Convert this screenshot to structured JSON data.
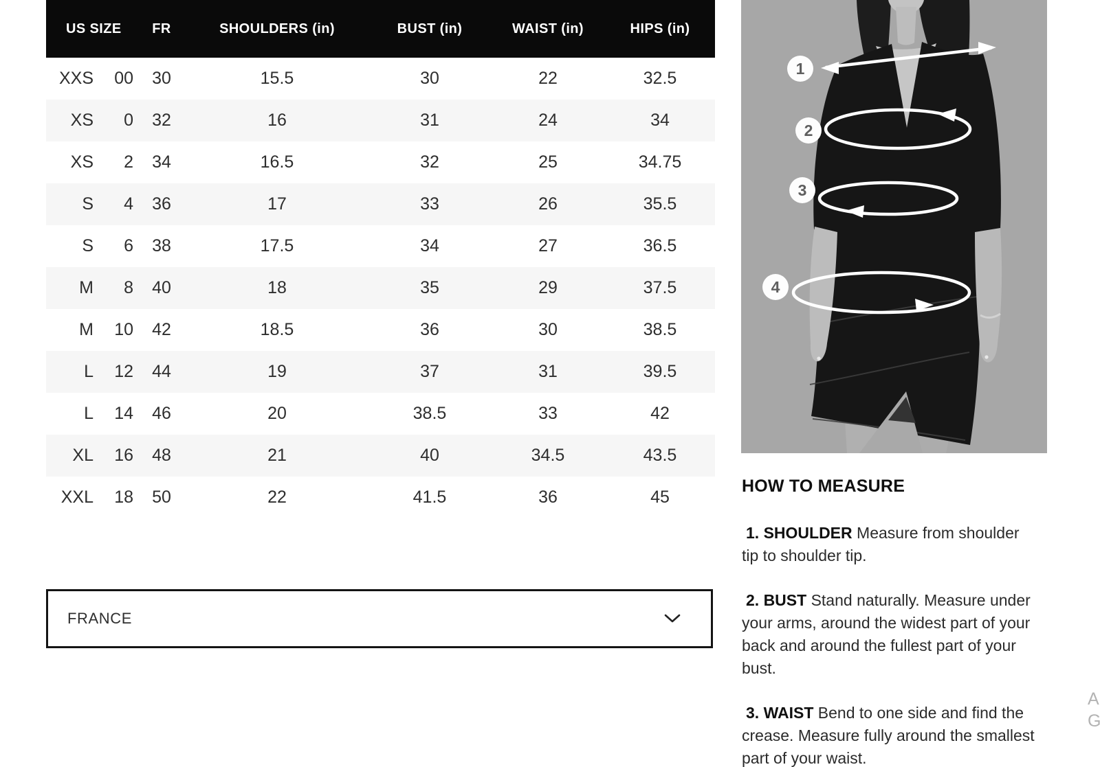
{
  "table": {
    "headers": [
      {
        "label": "US SIZE",
        "colspan": 2
      },
      {
        "label": "FR",
        "colspan": 1
      },
      {
        "label": "SHOULDERS (in)",
        "colspan": 1
      },
      {
        "label": "BUST (in)",
        "colspan": 1
      },
      {
        "label": "WAIST (in)",
        "colspan": 1
      },
      {
        "label": "HIPS (in)",
        "colspan": 1
      }
    ],
    "rows": [
      [
        "XXS",
        "00",
        "30",
        "15.5",
        "30",
        "22",
        "32.5"
      ],
      [
        "XS",
        "0",
        "32",
        "16",
        "31",
        "24",
        "34"
      ],
      [
        "XS",
        "2",
        "34",
        "16.5",
        "32",
        "25",
        "34.75"
      ],
      [
        "S",
        "4",
        "36",
        "17",
        "33",
        "26",
        "35.5"
      ],
      [
        "S",
        "6",
        "38",
        "17.5",
        "34",
        "27",
        "36.5"
      ],
      [
        "M",
        "8",
        "40",
        "18",
        "35",
        "29",
        "37.5"
      ],
      [
        "M",
        "10",
        "42",
        "18.5",
        "36",
        "30",
        "38.5"
      ],
      [
        "L",
        "12",
        "44",
        "19",
        "37",
        "31",
        "39.5"
      ],
      [
        "L",
        "14",
        "46",
        "20",
        "38.5",
        "33",
        "42"
      ],
      [
        "XL",
        "16",
        "48",
        "21",
        "40",
        "34.5",
        "43.5"
      ],
      [
        "XXL",
        "18",
        "50",
        "22",
        "41.5",
        "36",
        "45"
      ]
    ]
  },
  "region_selector": {
    "value": "FRANCE",
    "icon": "chevron-down"
  },
  "measure_guide": {
    "title": "HOW TO MEASURE",
    "steps": [
      {
        "label": "1. SHOULDER",
        "text": "Measure from shoulder tip to shoulder tip."
      },
      {
        "label": "2. BUST",
        "text": "Stand naturally. Measure under your arms, around the widest part of your back and around the fullest part of your bust."
      },
      {
        "label": "3. WAIST",
        "text": "Bend to one side and find the crease. Measure fully around the smallest part of your waist."
      }
    ]
  },
  "figure": {
    "annotations": [
      {
        "label": "1",
        "measures": "shoulders"
      },
      {
        "label": "2",
        "measures": "bust"
      },
      {
        "label": "3",
        "measures": "waist"
      },
      {
        "label": "4",
        "measures": "hips"
      }
    ]
  },
  "edge_text": {
    "line1": "A",
    "line2": "G"
  },
  "colors": {
    "header_bg": "#0a0a0a",
    "header_text": "#ffffff",
    "row_stripe": "#f6f6f6",
    "body_text": "#2e2e2e",
    "photo_bg": "#a7a7a7",
    "dress": "#161616",
    "annotation": "#ffffff"
  }
}
